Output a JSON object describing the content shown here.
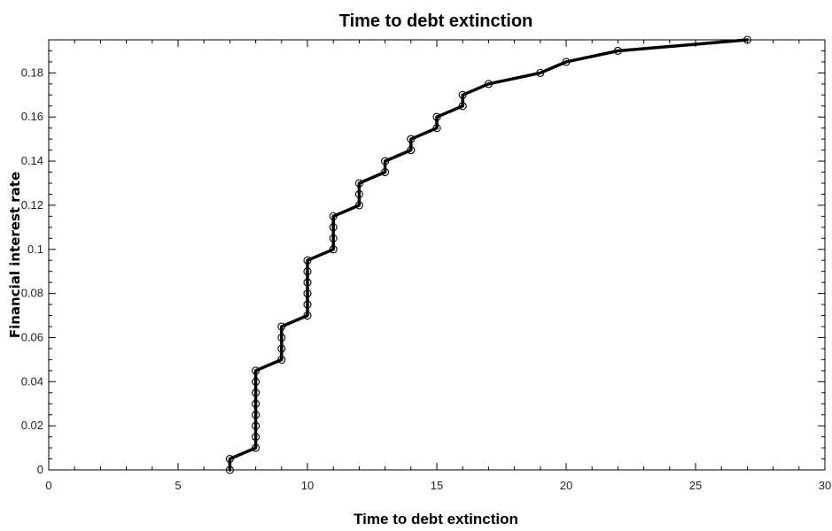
{
  "chart_data": {
    "type": "line",
    "title": "Time to debt extinction",
    "xlabel": "Time to debt extinction",
    "ylabel": "Financial interest rate",
    "xlim": [
      0,
      30
    ],
    "ylim": [
      0,
      0.195
    ],
    "xticks": [
      0,
      5,
      10,
      15,
      20,
      25,
      30
    ],
    "yticks": [
      0,
      0.02,
      0.04,
      0.06,
      0.08,
      0.1,
      0.12,
      0.14,
      0.16,
      0.18
    ],
    "xtick_labels": [
      "0",
      "5",
      "10",
      "15",
      "20",
      "25",
      "30"
    ],
    "ytick_labels": [
      "0",
      "0.02",
      "0.04",
      "0.06",
      "0.08",
      "0.1",
      "0.12",
      "0.14",
      "0.16",
      "0.18"
    ],
    "grid": false,
    "line_color": "#000000",
    "marker": "open-circle",
    "series": [
      {
        "points": [
          [
            7,
            0
          ],
          [
            7,
            0.005
          ],
          [
            8,
            0.01
          ],
          [
            8,
            0.015
          ],
          [
            8,
            0.02
          ],
          [
            8,
            0.025
          ],
          [
            8,
            0.03
          ],
          [
            8,
            0.035
          ],
          [
            8,
            0.04
          ],
          [
            8,
            0.045
          ],
          [
            9,
            0.05
          ],
          [
            9,
            0.055
          ],
          [
            9,
            0.06
          ],
          [
            9,
            0.065
          ],
          [
            10,
            0.07
          ],
          [
            10,
            0.075
          ],
          [
            10,
            0.08
          ],
          [
            10,
            0.085
          ],
          [
            10,
            0.09
          ],
          [
            10,
            0.095
          ],
          [
            11,
            0.1
          ],
          [
            11,
            0.105
          ],
          [
            11,
            0.11
          ],
          [
            11,
            0.115
          ],
          [
            12,
            0.12
          ],
          [
            12,
            0.125
          ],
          [
            12,
            0.13
          ],
          [
            13,
            0.135
          ],
          [
            13,
            0.14
          ],
          [
            14,
            0.145
          ],
          [
            14,
            0.15
          ],
          [
            15,
            0.155
          ],
          [
            15,
            0.16
          ],
          [
            16,
            0.165
          ],
          [
            16,
            0.17
          ],
          [
            17,
            0.175
          ],
          [
            19,
            0.18
          ],
          [
            20,
            0.185
          ],
          [
            22,
            0.19
          ],
          [
            27,
            0.195
          ]
        ]
      }
    ]
  }
}
